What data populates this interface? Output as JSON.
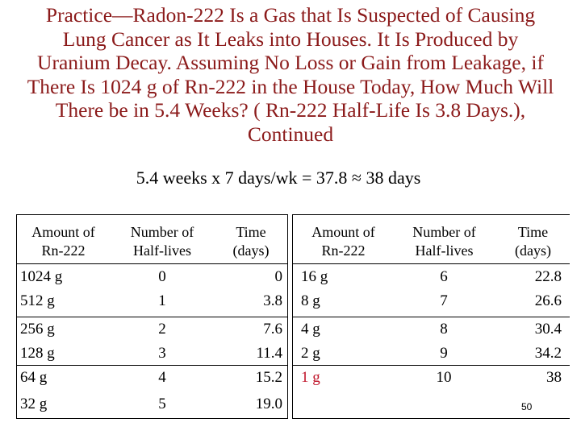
{
  "title_lines": [
    "Practice—Radon-222 Is a Gas that Is Suspected of Causing",
    "Lung Cancer as It Leaks into Houses.  It Is Produced by",
    "Uranium Decay.  Assuming No Loss or Gain from Leakage, if",
    "There Is 1024 g of Rn-222 in the House Today, How Much Will",
    "There be in 5.4 Weeks? ( Rn-222 Half-Life Is 3.8 Days.),",
    "Continued"
  ],
  "calculation": "5.4 weeks x 7 days/wk = 37.8 ≈ 38 days",
  "headers": {
    "amount": [
      "Amount of",
      "Rn-222"
    ],
    "halflives": [
      "Number of",
      "Half-lives"
    ],
    "time": [
      "Time",
      "(days)"
    ]
  },
  "left_rows": [
    {
      "amount": "1024 g",
      "halflives": "0",
      "time": "0"
    },
    {
      "amount": "512 g",
      "halflives": "1",
      "time": "3.8"
    },
    {
      "amount": "256 g",
      "halflives": "2",
      "time": "7.6"
    },
    {
      "amount": "128 g",
      "halflives": "3",
      "time": "11.4"
    },
    {
      "amount": "64 g",
      "halflives": "4",
      "time": "15.2"
    },
    {
      "amount": "32 g",
      "halflives": "5",
      "time": "19.0"
    }
  ],
  "right_rows": [
    {
      "amount": "16 g",
      "halflives": "6",
      "time": "22.8"
    },
    {
      "amount": "8 g",
      "halflives": "7",
      "time": "26.6"
    },
    {
      "amount": "4 g",
      "halflives": "8",
      "time": "30.4"
    },
    {
      "amount": "2 g",
      "halflives": "9",
      "time": "34.2"
    },
    {
      "amount": "1 g",
      "halflives": "10",
      "time": "38"
    }
  ],
  "highlight_color": "#c0152a",
  "title_color": "#8b1a1a",
  "page_number": "50"
}
